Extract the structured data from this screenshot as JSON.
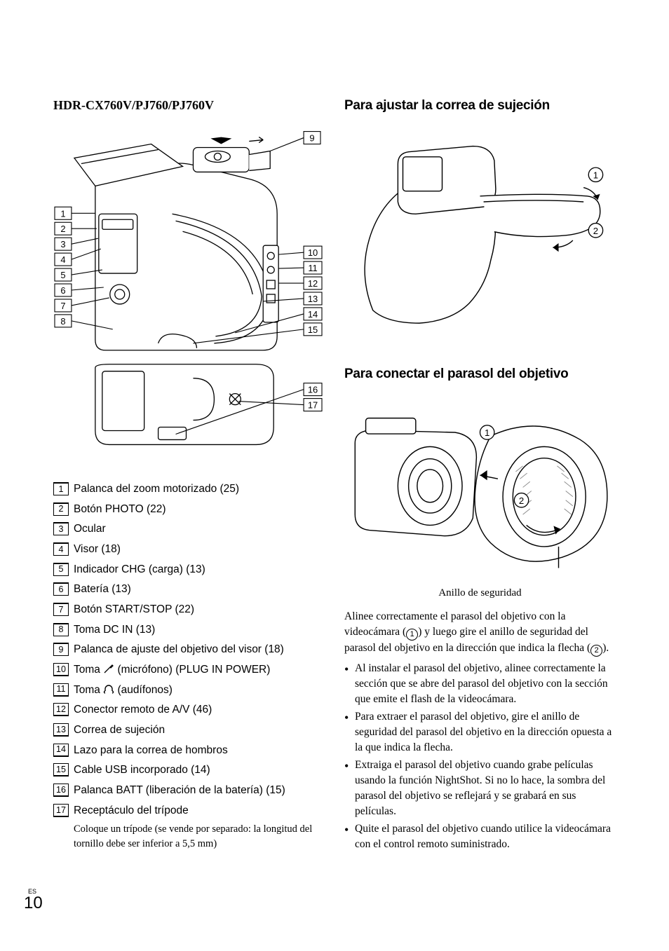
{
  "page": {
    "lang": "ES",
    "number": "10"
  },
  "left": {
    "model": "HDR-CX760V/PJ760/PJ760V",
    "diagram": {
      "left_callouts": [
        "1",
        "2",
        "3",
        "4",
        "5",
        "6",
        "7",
        "8"
      ],
      "right_callouts_top": [
        "9"
      ],
      "right_callouts_mid": [
        "10",
        "11",
        "12",
        "13",
        "14",
        "15"
      ],
      "right_callouts_bottom": [
        "16",
        "17"
      ],
      "stroke": "#000000",
      "fill": "#ffffff",
      "hatch": "#777777"
    },
    "parts": [
      {
        "n": "1",
        "style": "over",
        "text": "Palanca del zoom motorizado (25)"
      },
      {
        "n": "2",
        "style": "over",
        "text": "Botón PHOTO (22)"
      },
      {
        "n": "3",
        "style": "over",
        "text": "Ocular"
      },
      {
        "n": "4",
        "style": "over",
        "text": "Visor (18)"
      },
      {
        "n": "5",
        "style": "over",
        "text": "Indicador CHG (carga) (13)"
      },
      {
        "n": "6",
        "style": "over",
        "text": "Batería (13)"
      },
      {
        "n": "7",
        "style": "over",
        "text": "Botón START/STOP (22)"
      },
      {
        "n": "8",
        "style": "over",
        "text": "Toma DC IN (13)"
      },
      {
        "n": "9",
        "style": "over",
        "text": "Palanca de ajuste del objetivo del visor (18)"
      },
      {
        "n": "10",
        "style": "under",
        "text": "Toma ",
        "icon": "mic",
        "text2": " (micrófono) (PLUG IN POWER)"
      },
      {
        "n": "11",
        "style": "under",
        "text": "Toma ",
        "icon": "hp",
        "text2": " (audífonos)"
      },
      {
        "n": "12",
        "style": "under",
        "text": "Conector remoto de A/V (46)"
      },
      {
        "n": "13",
        "style": "under",
        "text": "Correa de sujeción"
      },
      {
        "n": "14",
        "style": "under",
        "text": "Lazo para la correa de hombros"
      },
      {
        "n": "15",
        "style": "under",
        "text": "Cable USB incorporado (14)"
      },
      {
        "n": "16",
        "style": "under",
        "text": "Palanca BATT (liberación de la batería) (15)"
      },
      {
        "n": "17",
        "style": "under",
        "text": "Receptáculo del trípode",
        "note": "Coloque un trípode (se vende por separado: la longitud del tornillo debe ser inferior a 5,5 mm)"
      }
    ]
  },
  "right": {
    "strap": {
      "title": "Para ajustar la correa de sujeción",
      "circ": [
        "1",
        "2"
      ]
    },
    "hood": {
      "title": "Para conectar el parasol del objetivo",
      "circ": [
        "1",
        "2"
      ],
      "caption": "Anillo de seguridad",
      "intro_a": "Alinee correctamente el parasol del objetivo con la videocámara (",
      "intro_b": ") y luego gire el anillo de seguridad del parasol del objetivo en la dirección que indica la flecha (",
      "intro_c": ").",
      "bullets": [
        "Al instalar el parasol del objetivo, alinee correctamente la sección que se abre del parasol del objetivo con la sección que emite el flash de la videocámara.",
        "Para extraer el parasol del objetivo, gire el anillo de seguridad del parasol del objetivo en la dirección opuesta a la que indica la flecha.",
        "Extraiga el parasol del objetivo cuando grabe películas usando la función NightShot. Si no lo hace, la sombra del parasol del objetivo se reflejará y se grabará en sus películas.",
        "Quite el parasol del objetivo cuando utilice la videocámara con el control remoto suministrado."
      ]
    }
  }
}
